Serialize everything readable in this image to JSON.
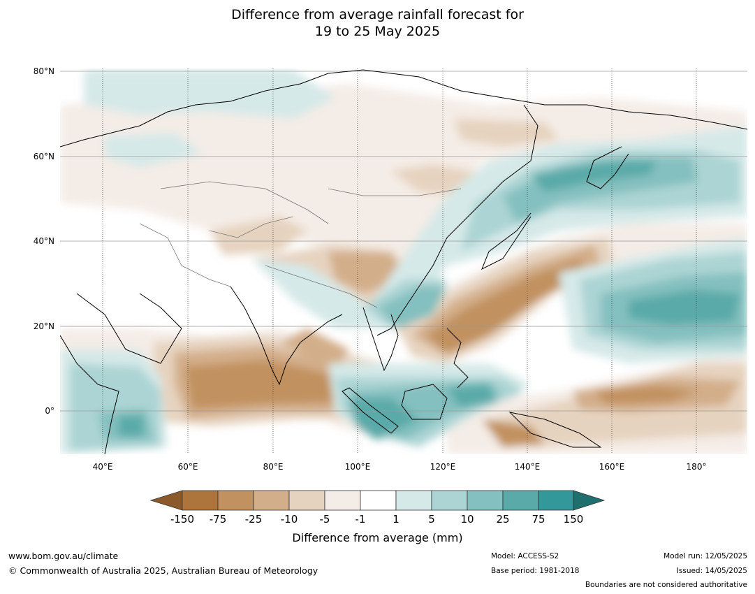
{
  "title_line1": "Difference from average rainfall forecast for",
  "title_line2": "19 to 25 May 2025",
  "map": {
    "lon_range": [
      30,
      190
    ],
    "lat_range": [
      -10,
      81
    ],
    "lat_labels": [
      "80°N",
      "60°N",
      "40°N",
      "20°N",
      "0°"
    ],
    "lon_labels": [
      "40°E",
      "60°E",
      "80°E",
      "100°E",
      "120°E",
      "140°E",
      "160°E",
      "180°"
    ]
  },
  "colorbar": {
    "title": "Difference from average (mm)",
    "ticks": [
      "-150",
      "-75",
      "-25",
      "-10",
      "-5",
      "-1",
      "1",
      "5",
      "10",
      "25",
      "75",
      "150"
    ],
    "colors": {
      "lt_neg150": "#8c5a2a",
      "neg150_neg75": "#ad743b",
      "neg75_neg25": "#c1915f",
      "neg25_neg10": "#d3ae8a",
      "neg10_neg5": "#e6d3bf",
      "neg5_neg1": "#f4ece6",
      "neg1_1": "#ffffff",
      "1_5": "#d5e9e8",
      "5_10": "#acd4d4",
      "10_25": "#84c0bf",
      "25_75": "#5aaaa9",
      "75_150": "#33989a",
      "gt_150": "#1f6f6f"
    }
  },
  "footer": {
    "website": "www.bom.gov.au/climate",
    "copyright": "© Commonwealth of Australia 2025, Australian Bureau of Meteorology",
    "model": "Model: ACCESS-S2",
    "base_period": "Base period: 1981-2018",
    "model_run": "Model run: 12/05/2025",
    "issued": "Issued: 14/05/2025",
    "disclaimer": "Boundaries are not considered authoritative"
  }
}
